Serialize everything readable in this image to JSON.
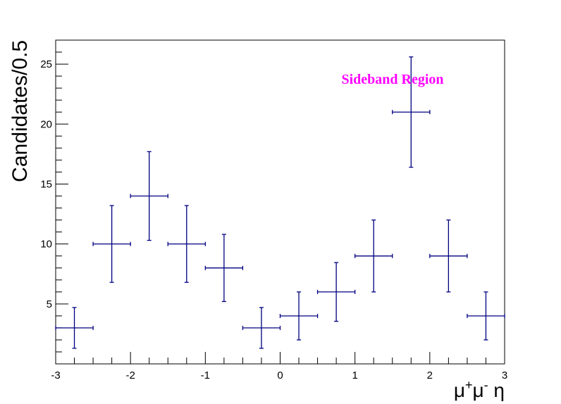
{
  "chart_data": {
    "type": "scatter",
    "style": "histogram-errorbars",
    "xlabel": {
      "base1": "μ",
      "sup1": "+",
      "base2": "μ",
      "sup2": "-",
      "rest": " η"
    },
    "ylabel": "Candidates/0.5",
    "xlim": [
      -3,
      3
    ],
    "ylim": [
      0,
      27
    ],
    "xticks": [
      "-3",
      "-2",
      "-1",
      "0",
      "1",
      "2",
      "3"
    ],
    "yticks": [
      "5",
      "10",
      "15",
      "20",
      "25"
    ],
    "annotation": "Sideband Region",
    "annotation_color": "#ff00ff",
    "series_color": "#000080",
    "points": [
      {
        "x": -2.75,
        "y": 3,
        "xerr": 0.25,
        "yerr_low": 1.7,
        "yerr_high": 1.7
      },
      {
        "x": -2.25,
        "y": 10,
        "xerr": 0.25,
        "yerr_low": 3.2,
        "yerr_high": 3.2
      },
      {
        "x": -1.75,
        "y": 14,
        "xerr": 0.25,
        "yerr_low": 3.7,
        "yerr_high": 3.7
      },
      {
        "x": -1.25,
        "y": 10,
        "xerr": 0.25,
        "yerr_low": 3.2,
        "yerr_high": 3.2
      },
      {
        "x": -0.75,
        "y": 8,
        "xerr": 0.25,
        "yerr_low": 2.8,
        "yerr_high": 2.8
      },
      {
        "x": -0.25,
        "y": 3,
        "xerr": 0.25,
        "yerr_low": 1.7,
        "yerr_high": 1.7
      },
      {
        "x": 0.25,
        "y": 4,
        "xerr": 0.25,
        "yerr_low": 2.0,
        "yerr_high": 2.0
      },
      {
        "x": 0.75,
        "y": 6,
        "xerr": 0.25,
        "yerr_low": 2.45,
        "yerr_high": 2.45
      },
      {
        "x": 1.25,
        "y": 9,
        "xerr": 0.25,
        "yerr_low": 3.0,
        "yerr_high": 3.0
      },
      {
        "x": 1.75,
        "y": 21,
        "xerr": 0.25,
        "yerr_low": 4.6,
        "yerr_high": 4.6
      },
      {
        "x": 2.25,
        "y": 9,
        "xerr": 0.25,
        "yerr_low": 3.0,
        "yerr_high": 3.0
      },
      {
        "x": 2.75,
        "y": 4,
        "xerr": 0.25,
        "yerr_low": 2.0,
        "yerr_high": 2.0
      }
    ]
  }
}
